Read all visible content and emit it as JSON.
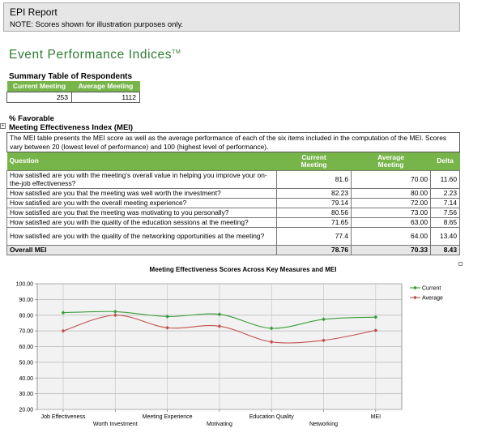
{
  "header": {
    "title": "EPI Report",
    "note": "NOTE: Scores shown for illustration purposes only."
  },
  "epi_title": "Event Performance Indices",
  "epi_trademark": "TM",
  "summary": {
    "title": "Summary Table of Respondents",
    "headers": [
      "Current Meeting",
      "Average Meeting"
    ],
    "values": [
      "253",
      "1112"
    ]
  },
  "favorable_label": "% Favorable",
  "mei": {
    "title": "Meeting Effectiveness Index (MEI)",
    "description": "The MEI table presents the MEI score as well as the average performance of each of the six items included in the computation of the MEI. Scores vary between 20 (lowest level of performance) and 100 (highest level of performance).",
    "headers": {
      "question": "Question",
      "current_line1": "Current",
      "current_line2": "Meeting",
      "average_line1": "Average",
      "average_line2": "Meeting",
      "delta": "Delta"
    },
    "rows": [
      {
        "question": "How satisfied are you with the meeting's overall value in helping you improve your on-the-job effectiveness?",
        "current": "81.6",
        "average": "70.00",
        "delta": "11.60"
      },
      {
        "question": "How satisfied are you that the meeting was well worth the investment?",
        "current": "82.23",
        "average": "80.00",
        "delta": "2.23"
      },
      {
        "question": "How satisfied are you with the overall meeting experience?",
        "current": "79.14",
        "average": "72.00",
        "delta": "7.14"
      },
      {
        "question": "How satisfied are you that the meeting was motivating to you personally?",
        "current": "80.56",
        "average": "73.00",
        "delta": "7.56"
      },
      {
        "question": "How satisfied are you with the quality of the education sessions at the meeting?",
        "current": "71.65",
        "average": "63.00",
        "delta": "8.65"
      },
      {
        "question": "How satisfied are you with the quality of the networking opportunities at the meeting?",
        "current": "77.4",
        "average": "64.00",
        "delta": "13.40"
      }
    ],
    "total": {
      "label": "Overall MEI",
      "current": "78.76",
      "average": "70.33",
      "delta": "8.43"
    }
  },
  "chart_data": {
    "type": "line",
    "title": "Meeting Effectiveness Scores Across Key Measures and MEI",
    "categories": [
      "Job Effectiveness",
      "Worth Investment",
      "Meeting Experience",
      "Motivating",
      "Education Quality",
      "Networking",
      "MEI"
    ],
    "series": [
      {
        "name": "Current",
        "color": "#3a9b3a",
        "values": [
          81.6,
          82.23,
          79.14,
          80.56,
          71.65,
          77.4,
          78.76
        ]
      },
      {
        "name": "Average",
        "color": "#c0504d",
        "values": [
          70.0,
          80.0,
          72.0,
          73.0,
          63.0,
          64.0,
          70.33
        ]
      }
    ],
    "ylim": [
      20,
      100
    ],
    "yticks": [
      "100.00",
      "90.00",
      "80.00",
      "70.00",
      "60.00",
      "50.00",
      "40.00",
      "30.00",
      "20.00"
    ],
    "grid": true,
    "legend": "right"
  }
}
